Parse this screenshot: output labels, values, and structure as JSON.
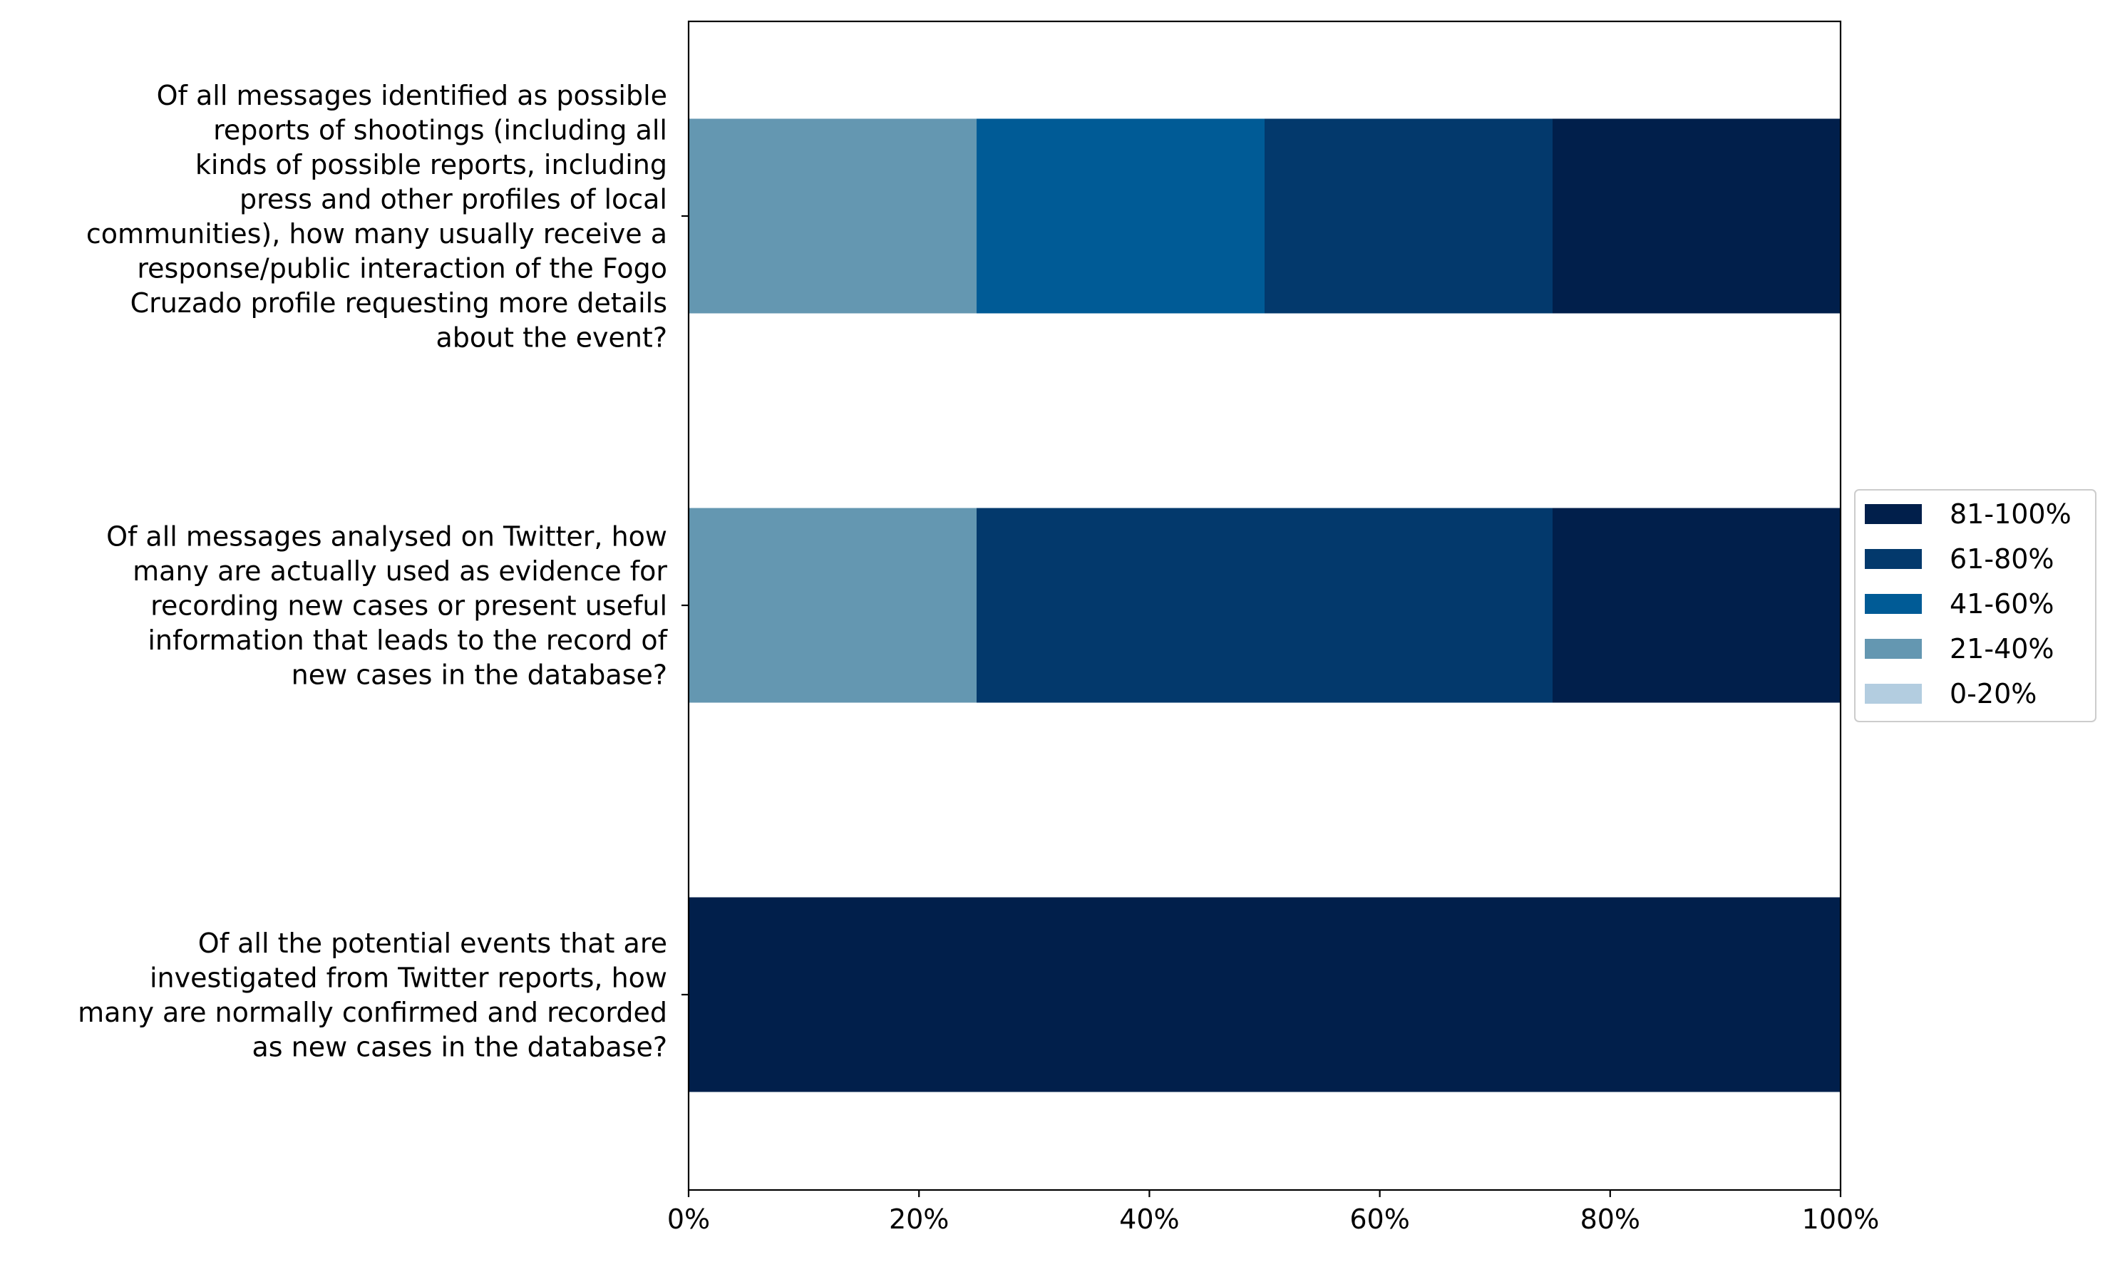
{
  "chart_data": {
    "type": "bar",
    "orientation": "horizontal",
    "stacked": true,
    "title": "",
    "xlabel": "",
    "ylabel": "",
    "xlim": [
      0,
      100
    ],
    "x_tick_labels": [
      "0%",
      "20%",
      "40%",
      "60%",
      "80%",
      "100%"
    ],
    "grid": false,
    "legend_placement": "center-right outside",
    "categories": [
      "Of all messages identified as possible reports of shootings (including all kinds of possible reports, including press and other profiles of local communities), how many usually receive a response/public interaction of the Fogo Cruzado profile requesting more details about the event?",
      "Of all messages analysed on Twitter, how many are actually used as evidence for recording new cases or present useful information that leads to the record of new cases in the database?",
      "Of all the potential events that are investigated from Twitter reports, how many are normally confirmed and recorded as new cases in the database?"
    ],
    "category_lines": [
      [
        "Of all messages identified as possible",
        "reports of shootings (including all",
        "kinds of possible reports, including",
        "press and other profiles of local",
        "communities), how many usually receive a",
        "response/public interaction of the Fogo",
        "Cruzado profile requesting more details",
        "about the event?"
      ],
      [
        "Of all messages analysed on Twitter, how",
        "many are actually used as evidence for",
        "recording new cases or present useful",
        "information that leads to the record of",
        "new cases in the database?"
      ],
      [
        "Of all the potential events that are",
        "investigated from Twitter reports, how",
        "many are normally confirmed and recorded",
        "as new cases in the database?"
      ]
    ],
    "series": [
      {
        "name": "0-20%",
        "color": "#b3cde0",
        "values": [
          0,
          0,
          0
        ]
      },
      {
        "name": "21-40%",
        "color": "#6497b1",
        "values": [
          25,
          25,
          0
        ]
      },
      {
        "name": "41-60%",
        "color": "#005b96",
        "values": [
          25,
          0,
          0
        ]
      },
      {
        "name": "61-80%",
        "color": "#03396c",
        "values": [
          25,
          50,
          0
        ]
      },
      {
        "name": "81-100%",
        "color": "#011f4b",
        "values": [
          25,
          25,
          100
        ]
      }
    ],
    "legend_order": [
      "81-100%",
      "61-80%",
      "41-60%",
      "21-40%",
      "0-20%"
    ]
  }
}
